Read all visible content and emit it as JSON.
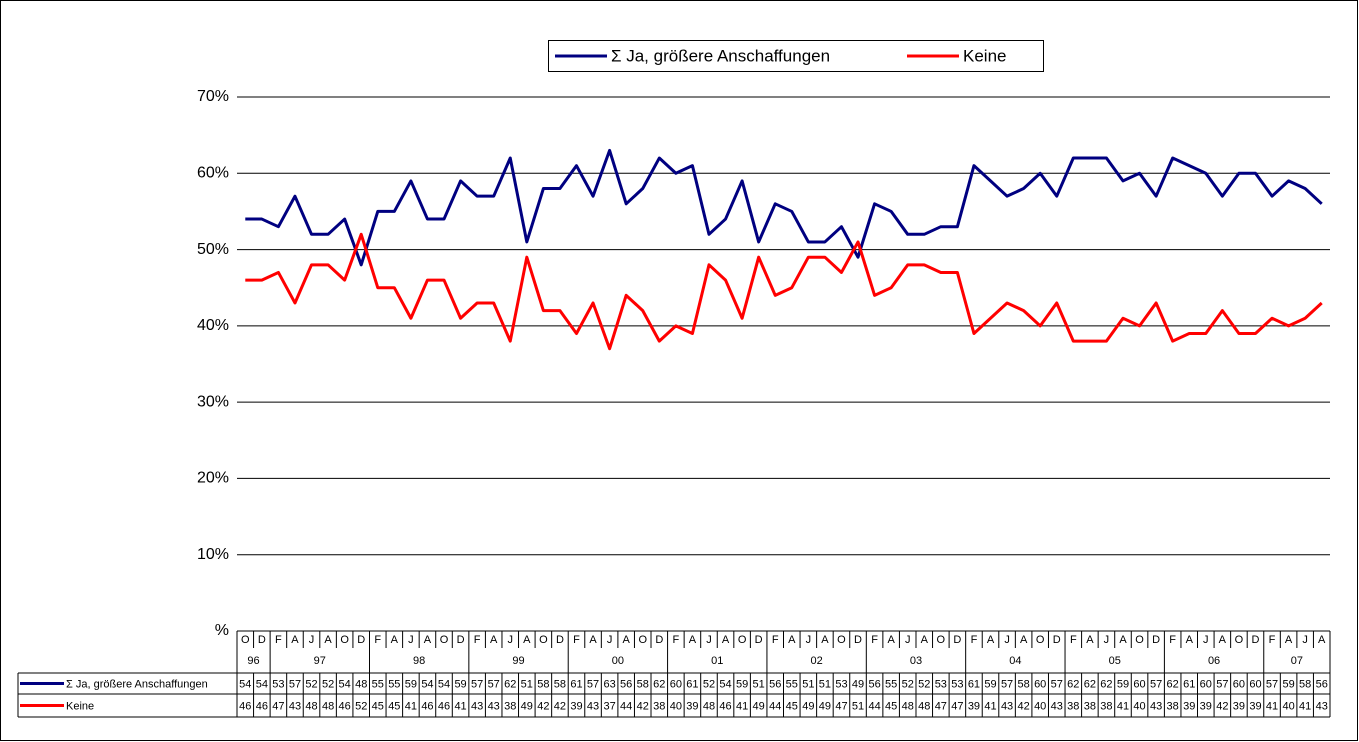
{
  "chart_data": {
    "type": "line",
    "groups": [
      {
        "label": "96",
        "months": [
          "O",
          "D"
        ]
      },
      {
        "label": "97",
        "months": [
          "F",
          "A",
          "J",
          "A",
          "O",
          "D"
        ]
      },
      {
        "label": "98",
        "months": [
          "F",
          "A",
          "J",
          "A",
          "O",
          "D"
        ]
      },
      {
        "label": "99",
        "months": [
          "F",
          "A",
          "J",
          "A",
          "O",
          "D"
        ]
      },
      {
        "label": "00",
        "months": [
          "F",
          "A",
          "J",
          "A",
          "O",
          "D"
        ]
      },
      {
        "label": "01",
        "months": [
          "F",
          "A",
          "J",
          "A",
          "O",
          "D"
        ]
      },
      {
        "label": "02",
        "months": [
          "F",
          "A",
          "J",
          "A",
          "O",
          "D"
        ]
      },
      {
        "label": "03",
        "months": [
          "F",
          "A",
          "J",
          "A",
          "O",
          "D"
        ]
      },
      {
        "label": "04",
        "months": [
          "F",
          "A",
          "J",
          "A",
          "O",
          "D"
        ]
      },
      {
        "label": "05",
        "months": [
          "F",
          "A",
          "J",
          "A",
          "O",
          "D"
        ]
      },
      {
        "label": "06",
        "months": [
          "F",
          "A",
          "J",
          "A",
          "O",
          "D"
        ]
      },
      {
        "label": "07",
        "months": [
          "F",
          "A",
          "J",
          "A"
        ]
      }
    ],
    "series": [
      {
        "name": "Σ Ja, größere Anschaffungen",
        "color": "#000080",
        "values": [
          54,
          54,
          53,
          57,
          52,
          52,
          54,
          48,
          55,
          55,
          59,
          54,
          54,
          59,
          57,
          57,
          62,
          51,
          58,
          58,
          61,
          57,
          63,
          56,
          58,
          62,
          60,
          61,
          52,
          54,
          59,
          51,
          56,
          55,
          51,
          51,
          53,
          49,
          56,
          55,
          52,
          52,
          53,
          53,
          61,
          59,
          57,
          58,
          60,
          57,
          62,
          62,
          62,
          59,
          60,
          57,
          62,
          61,
          60,
          57,
          60,
          60,
          57,
          59,
          58,
          56
        ]
      },
      {
        "name": "Keine",
        "color": "#ff0000",
        "values": [
          46,
          46,
          47,
          43,
          48,
          48,
          46,
          52,
          45,
          45,
          41,
          46,
          46,
          41,
          43,
          43,
          38,
          49,
          42,
          42,
          39,
          43,
          37,
          44,
          42,
          38,
          40,
          39,
          48,
          46,
          41,
          49,
          44,
          45,
          49,
          49,
          47,
          51,
          44,
          45,
          48,
          48,
          47,
          47,
          39,
          41,
          43,
          42,
          40,
          43,
          38,
          38,
          38,
          41,
          40,
          43,
          38,
          39,
          39,
          42,
          39,
          39,
          41,
          40,
          41,
          43
        ]
      }
    ],
    "ylim": [
      0,
      70
    ],
    "yticks": [
      {
        "value": 0,
        "label": "%"
      },
      {
        "value": 10,
        "label": "10%"
      },
      {
        "value": 20,
        "label": "20%"
      },
      {
        "value": 30,
        "label": "30%"
      },
      {
        "value": 40,
        "label": "40%"
      },
      {
        "value": 50,
        "label": "50%"
      },
      {
        "value": 60,
        "label": "60%"
      },
      {
        "value": 70,
        "label": "70%"
      }
    ],
    "grid": true,
    "legend": "top"
  }
}
